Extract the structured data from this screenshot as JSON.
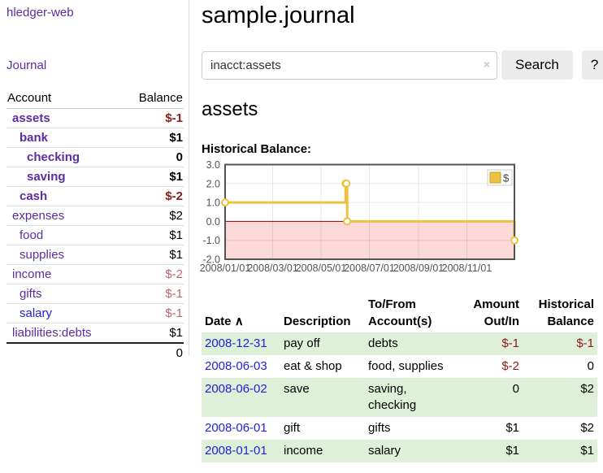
{
  "sidebar": {
    "brand": "hledger-web",
    "journal_label": "Journal",
    "header": {
      "account": "Account",
      "balance": "Balance"
    },
    "rows": [
      {
        "name": "assets",
        "balance": "$-1",
        "depth": 1,
        "emphasis": true,
        "balance_tone": "neg-strong",
        "link_tone": "purple"
      },
      {
        "name": "bank",
        "balance": "$1",
        "depth": 2,
        "emphasis": true,
        "balance_tone": "",
        "link_tone": "purple"
      },
      {
        "name": "checking",
        "balance": "0",
        "depth": 3,
        "emphasis": true,
        "balance_tone": "",
        "link_tone": "purple"
      },
      {
        "name": "saving",
        "balance": "$1",
        "depth": 3,
        "emphasis": true,
        "balance_tone": "",
        "link_tone": "purple"
      },
      {
        "name": "cash",
        "balance": "$-2",
        "depth": 2,
        "emphasis": true,
        "balance_tone": "neg-strong",
        "link_tone": "purple"
      },
      {
        "name": "expenses",
        "balance": "$2",
        "depth": 1,
        "emphasis": false,
        "balance_tone": "",
        "link_tone": "purple"
      },
      {
        "name": "food",
        "balance": "$1",
        "depth": 2,
        "emphasis": false,
        "balance_tone": "",
        "link_tone": "purple"
      },
      {
        "name": "supplies",
        "balance": "$1",
        "depth": 2,
        "emphasis": false,
        "balance_tone": "",
        "link_tone": "purple"
      },
      {
        "name": "income",
        "balance": "$-2",
        "depth": 1,
        "emphasis": false,
        "balance_tone": "neg-soft",
        "link_tone": "purple"
      },
      {
        "name": "gifts",
        "balance": "$-1",
        "depth": 2,
        "emphasis": false,
        "balance_tone": "neg-soft",
        "link_tone": "purple"
      },
      {
        "name": "salary",
        "balance": "$-1",
        "depth": 2,
        "emphasis": false,
        "balance_tone": "neg-soft",
        "link_tone": "blue"
      },
      {
        "name": "liabilities:debts",
        "balance": "$1",
        "depth": 1,
        "emphasis": false,
        "balance_tone": "",
        "link_tone": "purple"
      }
    ],
    "total": "0"
  },
  "header": {
    "title": "sample.journal"
  },
  "search": {
    "value": "inacct:assets",
    "clear_icon": "×",
    "button_label": "Search",
    "help_label": "?"
  },
  "account_page": {
    "heading": "assets",
    "chart_label": "Historical Balance:"
  },
  "chart_data": {
    "type": "line",
    "title": "Historical Balance",
    "step": true,
    "xlim": [
      "2008-01-01",
      "2008-12-31"
    ],
    "ylim": [
      -2,
      3
    ],
    "y_ticks": [
      3.0,
      2.0,
      1.0,
      0.0,
      -1.0,
      -2.0
    ],
    "x_ticks": [
      "2008/01/01",
      "2008/03/01",
      "2008/05/01",
      "2008/07/01",
      "2008/09/01",
      "2008/11/01"
    ],
    "series": [
      {
        "name": "$",
        "color": "#edc240",
        "points": [
          [
            "2008-01-01",
            1
          ],
          [
            "2008-06-01",
            2
          ],
          [
            "2008-06-02",
            2
          ],
          [
            "2008-06-03",
            0
          ],
          [
            "2008-12-31",
            -1
          ]
        ]
      }
    ],
    "legend": {
      "label": "$",
      "position": "top-right"
    },
    "grid": true,
    "negative_region_color": "#fbd9d9",
    "zero_line_color": "#8b0000",
    "border_color": "#545454",
    "tick_color": "#545454"
  },
  "register": {
    "sort_indicator": "∧",
    "columns": {
      "date": "Date",
      "description": "Description",
      "tofrom": "To/From Account(s)",
      "amount": "Amount Out/In",
      "historical": "Historical Balance"
    },
    "rows": [
      {
        "date": "2008-12-31",
        "description": "pay off",
        "tofrom": "debts",
        "amount": "$-1",
        "historical": "$-1"
      },
      {
        "date": "2008-06-03",
        "description": "eat & shop",
        "tofrom": "food, supplies",
        "amount": "$-2",
        "historical": "0"
      },
      {
        "date": "2008-06-02",
        "description": "save",
        "tofrom": "saving, checking",
        "amount": "0",
        "historical": "$2"
      },
      {
        "date": "2008-06-01",
        "description": "gift",
        "tofrom": "gifts",
        "amount": "$1",
        "historical": "$2"
      },
      {
        "date": "2008-01-01",
        "description": "income",
        "tofrom": "salary",
        "amount": "$1",
        "historical": "$1"
      }
    ]
  },
  "colors": {
    "link_purple": "#5b2da0",
    "link_blue": "#2222dd",
    "negative_strong": "#8f1a1a",
    "negative_soft": "#b96a6a",
    "row_green": "#dff0d8",
    "series_gold": "#edc240"
  }
}
